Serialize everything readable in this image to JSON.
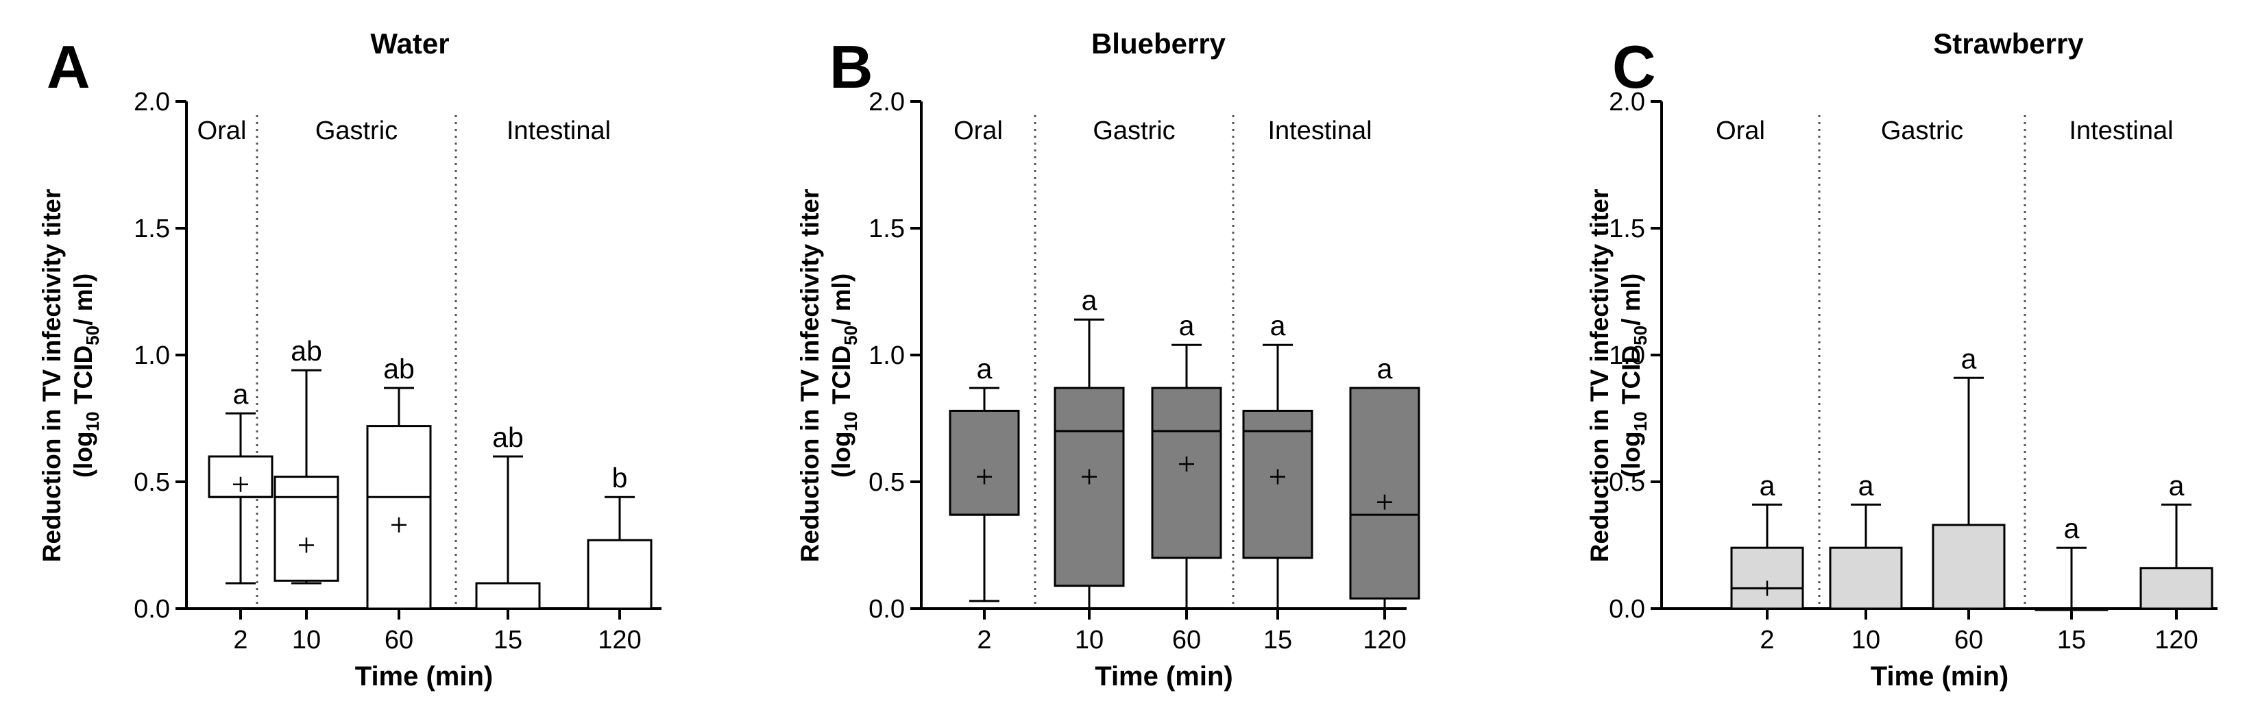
{
  "chart_data": [
    {
      "type": "box",
      "panel": "A",
      "title": "Water",
      "ylabel_line1": "Reduction in TV infectivity titer",
      "ylabel_line2_pre": "(log",
      "ylabel_line2_sub1": "10",
      "ylabel_line2_mid": " TCID",
      "ylabel_line2_sub2": "50",
      "ylabel_line2_post": "/ ml)",
      "xlabel": "Time (min)",
      "ylim": [
        0,
        2
      ],
      "yticks": [
        "0.0",
        "0.5",
        "1.0",
        "1.5",
        "2.0"
      ],
      "categories": [
        "2",
        "10",
        "60",
        "15",
        "120"
      ],
      "phases": [
        {
          "label": "Oral",
          "categories": [
            "2"
          ]
        },
        {
          "label": "Gastric",
          "categories": [
            "10",
            "60"
          ]
        },
        {
          "label": "Intestinal",
          "categories": [
            "15",
            "120"
          ]
        }
      ],
      "fill_color": "#ffffff",
      "boxes": [
        {
          "category": "2",
          "min": 0.1,
          "q1": 0.44,
          "median": 0.44,
          "q3": 0.6,
          "max": 0.77,
          "mean": 0.49,
          "letter": "a"
        },
        {
          "category": "10",
          "min": 0.1,
          "q1": 0.11,
          "median": 0.44,
          "q3": 0.52,
          "max": 0.94,
          "mean": 0.25,
          "letter": "ab"
        },
        {
          "category": "60",
          "min": 0.0,
          "q1": 0.0,
          "median": 0.44,
          "q3": 0.72,
          "max": 0.87,
          "mean": 0.33,
          "letter": "ab"
        },
        {
          "category": "15",
          "min": 0.0,
          "q1": 0.0,
          "median": 0.0,
          "q3": 0.1,
          "max": 0.6,
          "mean": null,
          "letter": "ab"
        },
        {
          "category": "120",
          "min": 0.0,
          "q1": 0.0,
          "median": 0.0,
          "q3": 0.27,
          "max": 0.44,
          "mean": null,
          "letter": "b"
        }
      ]
    },
    {
      "type": "box",
      "panel": "B",
      "title": "Blueberry",
      "ylabel_line1": "Reduction in TV infectivity titer",
      "ylabel_line2_pre": "(log",
      "ylabel_line2_sub1": "10",
      "ylabel_line2_mid": " TCID",
      "ylabel_line2_sub2": "50",
      "ylabel_line2_post": "/ ml)",
      "xlabel": "Time (min)",
      "ylim": [
        0,
        2
      ],
      "yticks": [
        "0.0",
        "0.5",
        "1.0",
        "1.5",
        "2.0"
      ],
      "categories": [
        "2",
        "10",
        "60",
        "15",
        "120"
      ],
      "phases": [
        {
          "label": "Oral",
          "categories": [
            "2"
          ]
        },
        {
          "label": "Gastric",
          "categories": [
            "10",
            "60"
          ]
        },
        {
          "label": "Intestinal",
          "categories": [
            "15",
            "120"
          ]
        }
      ],
      "fill_color": "#7f7f7f",
      "boxes": [
        {
          "category": "2",
          "min": 0.03,
          "q1": 0.37,
          "median": 0.37,
          "q3": 0.78,
          "max": 0.87,
          "mean": 0.52,
          "letter": "a"
        },
        {
          "category": "10",
          "min": 0.0,
          "q1": 0.09,
          "median": 0.7,
          "q3": 0.87,
          "max": 1.14,
          "mean": 0.52,
          "letter": "a"
        },
        {
          "category": "60",
          "min": 0.0,
          "q1": 0.2,
          "median": 0.7,
          "q3": 0.87,
          "max": 1.04,
          "mean": 0.57,
          "letter": "a"
        },
        {
          "category": "15",
          "min": 0.0,
          "q1": 0.2,
          "median": 0.7,
          "q3": 0.78,
          "max": 1.04,
          "mean": 0.52,
          "letter": "a"
        },
        {
          "category": "120",
          "min": 0.0,
          "q1": 0.04,
          "median": 0.37,
          "q3": 0.87,
          "max": 0.87,
          "mean": 0.42,
          "letter": "a"
        }
      ]
    },
    {
      "type": "box",
      "panel": "C",
      "title": "Strawberry",
      "ylabel_line1": "Reduction in TV infectivity titer",
      "ylabel_line2_pre": "(log",
      "ylabel_line2_sub1": "10",
      "ylabel_line2_mid": " TCID",
      "ylabel_line2_sub2": "50",
      "ylabel_line2_post": "/ ml)",
      "xlabel": "Time (min)",
      "ylim": [
        0,
        2
      ],
      "yticks": [
        "0.0",
        "0.5",
        "1.0",
        "1.5",
        "2.0"
      ],
      "categories": [
        "2",
        "10",
        "60",
        "15",
        "120"
      ],
      "phases": [
        {
          "label": "Oral",
          "categories": [
            "2"
          ]
        },
        {
          "label": "Gastric",
          "categories": [
            "10",
            "60"
          ]
        },
        {
          "label": "Intestinal",
          "categories": [
            "15",
            "120"
          ]
        }
      ],
      "fill_color": "#d9d9d9",
      "boxes": [
        {
          "category": "2",
          "min": 0.0,
          "q1": 0.0,
          "median": 0.08,
          "q3": 0.24,
          "max": 0.41,
          "mean": 0.08,
          "letter": "a"
        },
        {
          "category": "10",
          "min": 0.0,
          "q1": 0.0,
          "median": 0.0,
          "q3": 0.24,
          "max": 0.41,
          "mean": null,
          "letter": "a"
        },
        {
          "category": "60",
          "min": 0.0,
          "q1": 0.0,
          "median": 0.0,
          "q3": 0.33,
          "max": 0.91,
          "mean": null,
          "letter": "a"
        },
        {
          "category": "15",
          "min": 0.0,
          "q1": 0.0,
          "median": 0.0,
          "q3": 0.0,
          "max": 0.24,
          "mean": null,
          "letter": "a"
        },
        {
          "category": "120",
          "min": 0.0,
          "q1": 0.0,
          "median": 0.0,
          "q3": 0.16,
          "max": 0.41,
          "mean": null,
          "letter": "a"
        }
      ]
    }
  ]
}
